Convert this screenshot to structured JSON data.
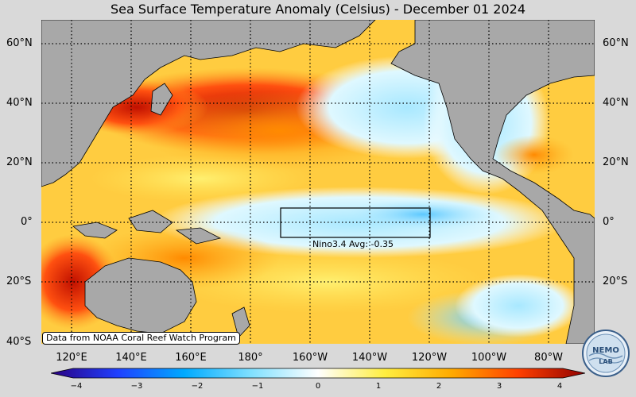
{
  "title": "Sea Surface Temperature Anomaly (Celsius) - December 01 2024",
  "credit": "Data from NOAA Coral Reef Watch Program",
  "nino_label": "Nino3.4 Avg: -0.35",
  "logo_text": "NEMO LAB",
  "lat_labels": [
    "60°N",
    "40°N",
    "20°N",
    "0°",
    "20°S",
    "40°S"
  ],
  "lon_labels": [
    "120°E",
    "140°E",
    "160°E",
    "180°",
    "160°W",
    "140°W",
    "120°W",
    "100°W",
    "80°W"
  ],
  "colorbar": {
    "ticks": [
      "−4",
      "−3",
      "−2",
      "−1",
      "0",
      "1",
      "2",
      "3",
      "4"
    ],
    "min": -4,
    "max": 4,
    "colors": [
      "#2a0080",
      "#2040ff",
      "#00aaff",
      "#80e0ff",
      "#ffffff",
      "#ffee40",
      "#ffaa00",
      "#ff4000",
      "#900000"
    ]
  },
  "colors": {
    "land": "#a8a8a8",
    "ocean_base": "#ffcc40",
    "cold": "#bfefff",
    "hot": "#d02000"
  }
}
